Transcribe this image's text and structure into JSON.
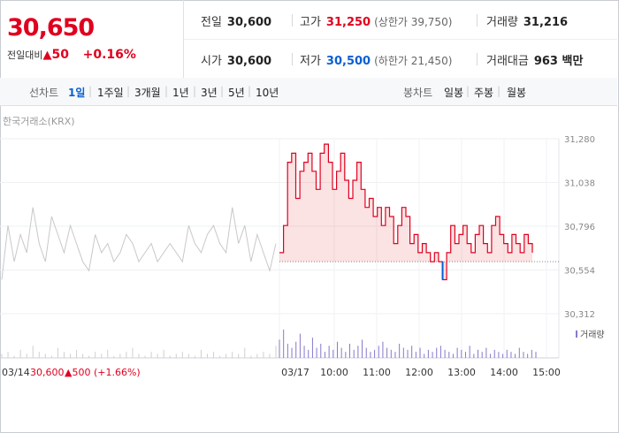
{
  "quote": {
    "price": "30,650",
    "change_label": "전일대비",
    "change_arrow": "▲",
    "change_value": "50",
    "change_pct": "+0.16%",
    "prev_close_label": "전일",
    "prev_close": "30,600",
    "open_label": "시가",
    "open": "30,600",
    "high_label": "고가",
    "high": "31,250",
    "upper_limit_label": "(상한가 39,750)",
    "low_label": "저가",
    "low": "30,500",
    "lower_limit_label": "(하한가 21,450)",
    "volume_label": "거래량",
    "volume": "31,216",
    "amount_label": "거래대금",
    "amount": "963 백만"
  },
  "periods": {
    "line_label": "선차트",
    "line_items": [
      "1일",
      "1주일",
      "3개월",
      "1년",
      "3년",
      "5년",
      "10년"
    ],
    "active": "1일",
    "candle_label": "봉차트",
    "candle_items": [
      "일봉",
      "주봉",
      "월봉"
    ]
  },
  "source_label": "한국거래소(KRX)",
  "colors": {
    "up": "#e0001e",
    "down": "#0a5fd3",
    "prev": "#c8c8c8",
    "volume": "#8877cc"
  },
  "chart_data": {
    "type": "line",
    "ylim": [
      30312,
      31280
    ],
    "yticks": [
      "31,280",
      "31,038",
      "30,796",
      "30,554",
      "30,312"
    ],
    "baseline": 30600,
    "xticks": [
      "03/17",
      "10:00",
      "11:00",
      "12:00",
      "13:00",
      "14:00",
      "15:00"
    ],
    "prev_day_label": "03/14",
    "prev_day_close_text": "30,600",
    "prev_day_change_text": "▲500 (+1.66%)",
    "volume_legend": "거래량",
    "series": [
      {
        "values": [
          30650,
          30800,
          31150,
          31200,
          30950,
          31100,
          31150,
          31200,
          31100,
          31000,
          31200,
          31250,
          31150,
          31000,
          31100,
          31200,
          31050,
          30950,
          31050,
          31150,
          31000,
          30900,
          30950,
          30850,
          30900,
          30800,
          30900,
          30850,
          30700,
          30800,
          30900,
          30850,
          30700,
          30750,
          30650,
          30700,
          30650,
          30600,
          30650,
          30600,
          30500,
          30650,
          30800,
          30700,
          30750,
          30800,
          30700,
          30650,
          30750,
          30800,
          30700,
          30650,
          30800,
          30850,
          30750,
          30700,
          30650,
          30750,
          30700,
          30650,
          30750,
          30700,
          30650
        ]
      },
      {
        "values": [
          30500,
          30800,
          30600,
          30750,
          30650,
          30900,
          30700,
          30600,
          30850,
          30750,
          30650,
          30800,
          30700,
          30600,
          30550,
          30750,
          30650,
          30700,
          30600,
          30650,
          30750,
          30700,
          30600,
          30650,
          30700,
          30600,
          30650,
          30700,
          30650,
          30600,
          30800,
          30700,
          30650,
          30750,
          30800,
          30700,
          30650,
          30900,
          30700,
          30800,
          30600,
          30750,
          30650,
          30550,
          30700
        ]
      }
    ],
    "volume": [
      2,
      3,
      1,
      4,
      2,
      6,
      3,
      2,
      1,
      5,
      3,
      2,
      4,
      2,
      1,
      3,
      2,
      4,
      1,
      2,
      3,
      5,
      2,
      1,
      3,
      2,
      4,
      1,
      2,
      3,
      2,
      1,
      4,
      2,
      3,
      1,
      2,
      3,
      2,
      5,
      1,
      2,
      3,
      2,
      6,
      9,
      14,
      7,
      5,
      8,
      12,
      6,
      4,
      10,
      5,
      7,
      3,
      6,
      4,
      8,
      5,
      3,
      7,
      4,
      6,
      9,
      5,
      3,
      4,
      6,
      8,
      5,
      4,
      3,
      7,
      5,
      4,
      6,
      3,
      5,
      2,
      4,
      3,
      5,
      6,
      4,
      3,
      2,
      5,
      4,
      3,
      6,
      2,
      4,
      3,
      5,
      2,
      4,
      3,
      2,
      4,
      3,
      2,
      5,
      3,
      2,
      4,
      3
    ]
  }
}
